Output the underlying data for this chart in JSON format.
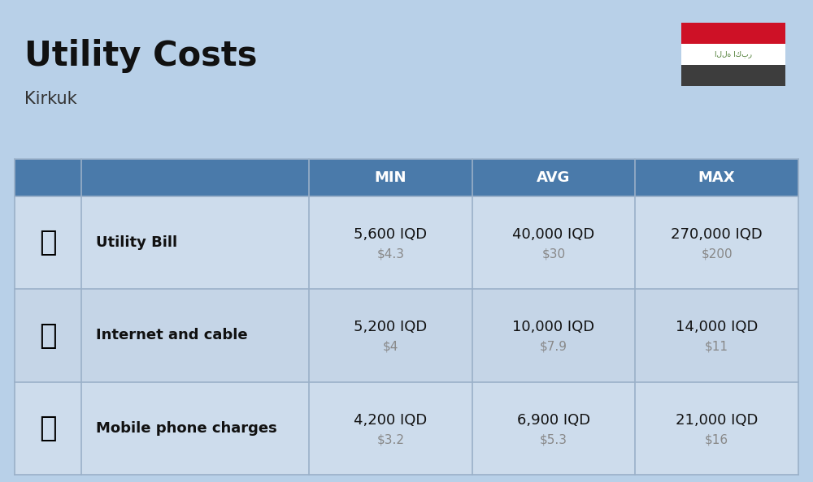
{
  "title": "Utility Costs",
  "subtitle": "Kirkuk",
  "background_color": "#b8d0e8",
  "header_bg_color": "#4a7aaa",
  "header_text_color": "#ffffff",
  "row_bg_even": "#cddcec",
  "row_bg_odd": "#c5d5e7",
  "col_headers": [
    "MIN",
    "AVG",
    "MAX"
  ],
  "rows": [
    {
      "label": "Utility Bill",
      "min_iqd": "5,600 IQD",
      "min_usd": "$4.3",
      "avg_iqd": "40,000 IQD",
      "avg_usd": "$30",
      "max_iqd": "270,000 IQD",
      "max_usd": "$200"
    },
    {
      "label": "Internet and cable",
      "min_iqd": "5,200 IQD",
      "min_usd": "$4",
      "avg_iqd": "10,000 IQD",
      "avg_usd": "$7.9",
      "max_iqd": "14,000 IQD",
      "max_usd": "$11"
    },
    {
      "label": "Mobile phone charges",
      "min_iqd": "4,200 IQD",
      "min_usd": "$3.2",
      "avg_iqd": "6,900 IQD",
      "avg_usd": "$5.3",
      "max_iqd": "21,000 IQD",
      "max_usd": "$16"
    }
  ],
  "title_fontsize": 30,
  "subtitle_fontsize": 15,
  "header_fontsize": 13,
  "label_fontsize": 13,
  "value_fontsize": 13,
  "usd_fontsize": 11,
  "flag_black": "#3d3d3d",
  "flag_red": "#ce1126",
  "flag_green": "#4a7a30"
}
